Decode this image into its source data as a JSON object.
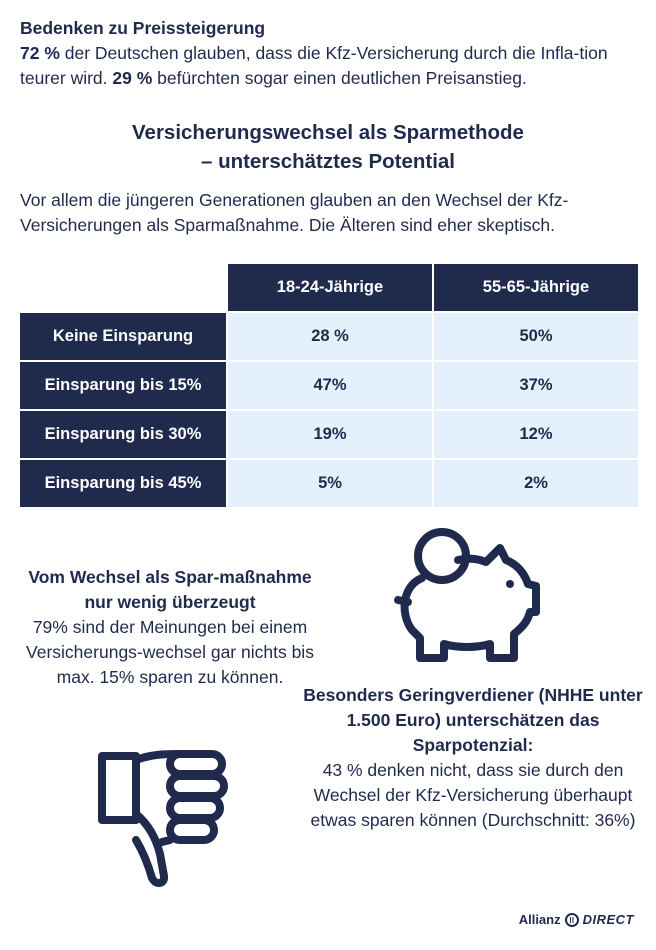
{
  "intro": {
    "heading": "Bedenken zu Preissteigerung",
    "p1_bold": "72 %",
    "p1_text": " der Deutschen glauben, dass die Kfz-Versicherung durch die Infla-tion teurer wird. ",
    "p2_bold": "29 %",
    "p2_text": " befürchten sogar einen deutlichen Preisanstieg."
  },
  "section": {
    "title_line1": "Versicherungswechsel als Sparmethode",
    "title_line2": "– unterschätztes Potential",
    "lead": "Vor allem die jüngeren Generationen glauben an den Wechsel der Kfz-Versicherungen als Sparmaßnahme. Die Älteren sind eher skeptisch."
  },
  "table": {
    "columns": [
      "18-24-Jährige",
      "55-65-Jährige"
    ],
    "rows": [
      {
        "label": "Keine Einsparung",
        "values": [
          "28 %",
          "50%"
        ]
      },
      {
        "label": "Einsparung bis 15%",
        "values": [
          "47%",
          "37%"
        ]
      },
      {
        "label": "Einsparung bis 30%",
        "values": [
          "19%",
          "12%"
        ]
      },
      {
        "label": "Einsparung bis 45%",
        "values": [
          "5%",
          "2%"
        ]
      }
    ]
  },
  "left_block": {
    "heading": "Vom Wechsel als Spar-maßnahme nur wenig überzeugt",
    "text": "79% sind der Meinungen bei einem Versicherungs-wechsel gar nichts bis max. 15% sparen zu können."
  },
  "right_block": {
    "heading": "Besonders Geringverdiener (NHHE unter 1.500 Euro) unterschätzen das Sparpotenzial:",
    "text": "43 % denken nicht, dass sie durch den Wechsel der Kfz-Versicherung überhaupt etwas sparen können (Durchschnitt: 36%)"
  },
  "icons": {
    "piggy": "piggy-bank-icon",
    "thumb": "thumbs-down-icon",
    "color": "#1f2a4d"
  },
  "brand": {
    "name": "Allianz",
    "suffix": "DIRECT"
  }
}
